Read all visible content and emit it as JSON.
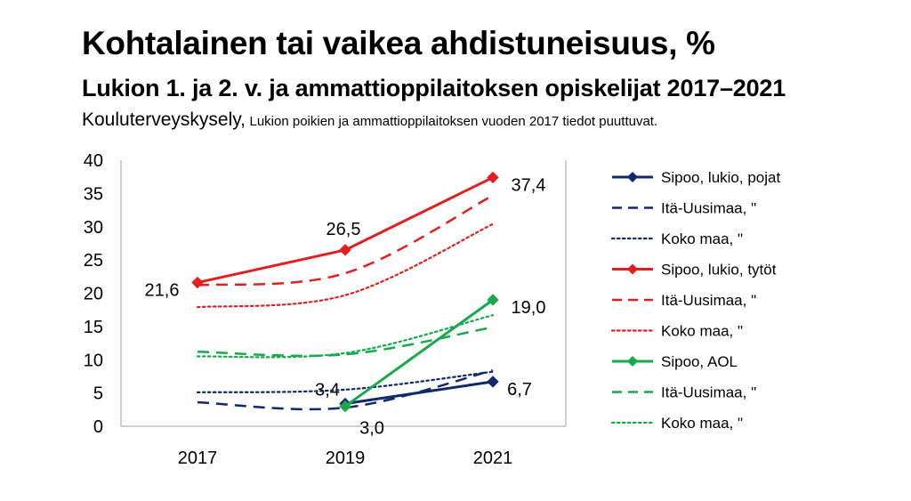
{
  "title": "Kohtalainen tai vaikea ahdistuneisuus, %",
  "subtitle": "Lukion 1. ja 2. v. ja ammattioppilaitoksen opiskelijat 2017–2021",
  "source": "Kouluterveyskysely,",
  "source_note": "Lukion poikien ja ammattioppilaitoksen vuoden 2017 tiedot puuttuvat.",
  "colors": {
    "navy": "#0f2a6b",
    "red": "#e41e1e",
    "green": "#18a94a",
    "axis": "#bfbfbf"
  },
  "chart_data": {
    "type": "line",
    "categories": [
      "2017",
      "2019",
      "2021"
    ],
    "ylim": [
      0,
      40
    ],
    "yticks": [
      0,
      5,
      10,
      15,
      20,
      25,
      30,
      35,
      40
    ],
    "grid": false,
    "legend_position": "right",
    "series": [
      {
        "name": "Sipoo, lukio, pojat",
        "values": [
          null,
          3.4,
          6.7
        ],
        "color": "navy",
        "style": "solid",
        "marker": true,
        "labels": [
          null,
          "3,4",
          "6,7"
        ]
      },
      {
        "name": "Itä-Uusimaa, \"",
        "values": [
          3.6,
          2.8,
          8.4
        ],
        "color": "navy",
        "style": "dashed",
        "marker": false
      },
      {
        "name": "Koko maa, \"",
        "values": [
          5.1,
          5.5,
          8.2
        ],
        "color": "navy",
        "style": "dotted",
        "marker": false
      },
      {
        "name": "Sipoo, lukio, tytöt",
        "values": [
          21.6,
          26.5,
          37.4
        ],
        "color": "red",
        "style": "solid",
        "marker": true,
        "labels": [
          "21,6",
          "26,5",
          "37,4"
        ]
      },
      {
        "name": "Itä-Uusimaa, \"",
        "values": [
          21.2,
          23.0,
          34.7
        ],
        "color": "red",
        "style": "dashed",
        "marker": false
      },
      {
        "name": "Koko maa, \"",
        "values": [
          17.9,
          19.7,
          30.4
        ],
        "color": "red",
        "style": "dotted",
        "marker": false
      },
      {
        "name": "Sipoo, AOL",
        "values": [
          null,
          3.0,
          19.0
        ],
        "color": "green",
        "style": "solid",
        "marker": true,
        "labels": [
          null,
          "3,0",
          "19,0"
        ]
      },
      {
        "name": "Itä-Uusimaa, \"",
        "values": [
          11.2,
          10.8,
          14.9
        ],
        "color": "green",
        "style": "dashed",
        "marker": false
      },
      {
        "name": "Koko maa, \"",
        "values": [
          10.5,
          11.0,
          16.7
        ],
        "color": "green",
        "style": "dotted",
        "marker": false
      }
    ]
  }
}
